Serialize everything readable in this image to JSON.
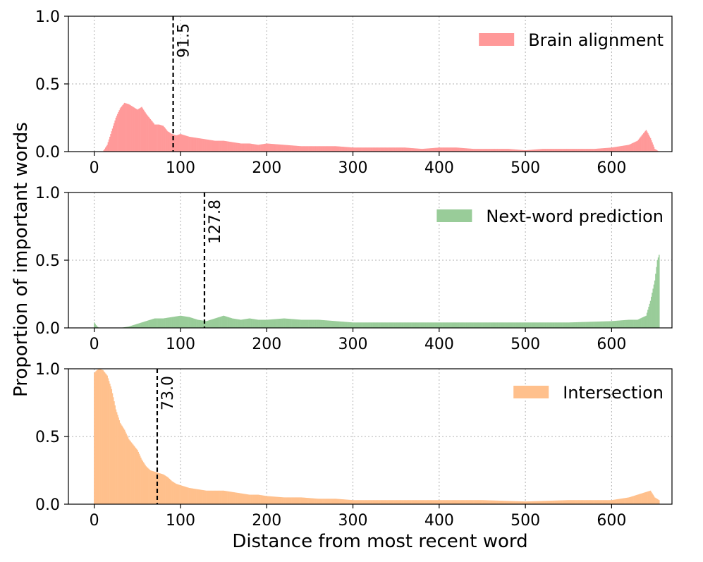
{
  "colors": {
    "brain_alignment": "#ff9999",
    "next_word_prediction": "#99cc99",
    "intersection": "#ffc08c",
    "vline": "#000000",
    "grid": "#b0b0b0"
  },
  "chart_data": [
    {
      "type": "area",
      "xlim": [
        -30,
        670
      ],
      "ylim": [
        0,
        1
      ],
      "xticks": [
        0,
        100,
        200,
        300,
        400,
        500,
        600
      ],
      "yticks": [
        0.0,
        0.5,
        1.0
      ],
      "xtick_labels": [
        "0",
        "100",
        "200",
        "300",
        "400",
        "500",
        "600"
      ],
      "ytick_labels": [
        "0.0",
        "0.5",
        "1.0"
      ],
      "grid": true,
      "legend_position": "top-right",
      "series": [
        {
          "name": "Brain alignment",
          "x": [
            0,
            10,
            15,
            20,
            25,
            30,
            35,
            40,
            45,
            50,
            55,
            60,
            65,
            70,
            75,
            80,
            85,
            90,
            95,
            100,
            110,
            120,
            130,
            140,
            150,
            160,
            170,
            180,
            190,
            200,
            220,
            240,
            260,
            280,
            300,
            320,
            340,
            360,
            380,
            400,
            420,
            440,
            460,
            480,
            500,
            520,
            540,
            560,
            580,
            600,
            610,
            620,
            630,
            635,
            640,
            645,
            650,
            655
          ],
          "y": [
            0.0,
            0.0,
            0.05,
            0.15,
            0.25,
            0.32,
            0.36,
            0.35,
            0.33,
            0.31,
            0.33,
            0.28,
            0.24,
            0.2,
            0.2,
            0.19,
            0.15,
            0.13,
            0.12,
            0.13,
            0.11,
            0.1,
            0.09,
            0.08,
            0.08,
            0.07,
            0.06,
            0.06,
            0.05,
            0.06,
            0.05,
            0.04,
            0.04,
            0.04,
            0.03,
            0.03,
            0.03,
            0.03,
            0.02,
            0.03,
            0.03,
            0.02,
            0.02,
            0.02,
            0.01,
            0.02,
            0.02,
            0.02,
            0.02,
            0.03,
            0.04,
            0.05,
            0.08,
            0.12,
            0.16,
            0.1,
            0.02,
            0.0
          ]
        }
      ],
      "vline": {
        "x": 91.5,
        "label": "91.5"
      }
    },
    {
      "type": "area",
      "xlim": [
        -30,
        670
      ],
      "ylim": [
        0,
        1
      ],
      "xticks": [
        0,
        100,
        200,
        300,
        400,
        500,
        600
      ],
      "yticks": [
        0.0,
        0.5,
        1.0
      ],
      "xtick_labels": [
        "0",
        "100",
        "200",
        "300",
        "400",
        "500",
        "600"
      ],
      "ytick_labels": [
        "0.0",
        "0.5",
        "1.0"
      ],
      "grid": true,
      "legend_position": "top-right",
      "series": [
        {
          "name": "Next-word prediction",
          "x": [
            0,
            2,
            5,
            30,
            40,
            50,
            60,
            70,
            80,
            90,
            100,
            110,
            120,
            130,
            140,
            150,
            160,
            170,
            180,
            190,
            200,
            220,
            240,
            260,
            280,
            300,
            350,
            400,
            450,
            500,
            550,
            600,
            620,
            630,
            640,
            645,
            650,
            653,
            655
          ],
          "y": [
            0.04,
            0.02,
            0.0,
            0.0,
            0.01,
            0.03,
            0.05,
            0.07,
            0.07,
            0.08,
            0.09,
            0.08,
            0.06,
            0.05,
            0.07,
            0.09,
            0.07,
            0.06,
            0.07,
            0.06,
            0.06,
            0.07,
            0.06,
            0.06,
            0.05,
            0.04,
            0.04,
            0.04,
            0.04,
            0.04,
            0.04,
            0.05,
            0.06,
            0.06,
            0.09,
            0.2,
            0.35,
            0.5,
            0.54
          ]
        }
      ],
      "vline": {
        "x": 127.8,
        "label": "127.8"
      }
    },
    {
      "type": "area",
      "xlim": [
        -30,
        670
      ],
      "ylim": [
        0,
        1
      ],
      "xticks": [
        0,
        100,
        200,
        300,
        400,
        500,
        600
      ],
      "yticks": [
        0.0,
        0.5,
        1.0
      ],
      "xtick_labels": [
        "0",
        "100",
        "200",
        "300",
        "400",
        "500",
        "600"
      ],
      "ytick_labels": [
        "0.0",
        "0.5",
        "1.0"
      ],
      "grid": true,
      "legend_position": "top-right",
      "series": [
        {
          "name": "Intersection",
          "x": [
            0,
            3,
            6,
            10,
            15,
            20,
            25,
            30,
            35,
            40,
            45,
            50,
            55,
            60,
            65,
            70,
            75,
            80,
            85,
            90,
            95,
            100,
            110,
            120,
            130,
            140,
            150,
            160,
            170,
            180,
            190,
            200,
            220,
            240,
            260,
            280,
            300,
            350,
            400,
            450,
            500,
            550,
            600,
            620,
            630,
            640,
            645,
            650,
            655
          ],
          "y": [
            0.97,
            0.99,
            1.0,
            0.99,
            0.95,
            0.85,
            0.7,
            0.6,
            0.55,
            0.48,
            0.44,
            0.4,
            0.33,
            0.28,
            0.25,
            0.24,
            0.23,
            0.22,
            0.2,
            0.17,
            0.15,
            0.14,
            0.12,
            0.11,
            0.1,
            0.1,
            0.1,
            0.09,
            0.08,
            0.07,
            0.07,
            0.06,
            0.05,
            0.05,
            0.04,
            0.04,
            0.03,
            0.03,
            0.03,
            0.03,
            0.02,
            0.03,
            0.03,
            0.05,
            0.07,
            0.09,
            0.1,
            0.05,
            0.03
          ]
        }
      ],
      "vline": {
        "x": 73.0,
        "label": "73.0"
      }
    }
  ],
  "ylabel": "Proportion of important words",
  "xlabel": "Distance from most recent word"
}
